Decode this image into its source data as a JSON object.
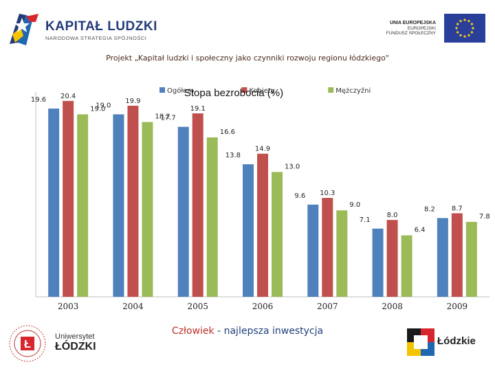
{
  "header": {
    "brand_title": "KAPITAŁ LUDZKI",
    "brand_subtitle": "NARODOWA STRATEGIA SPÓJNOŚCI",
    "eu_line1": "UNIA EUROPEJSKA",
    "eu_line2": "EUROPEJSKI",
    "eu_line3": "FUNDUSZ SPOŁECZNY"
  },
  "project_title": "Projekt „Kapitał ludzki i społeczny jako czynniki rozwoju regionu łódzkiego\"",
  "chart_data": {
    "type": "bar",
    "title": "Stopa bezrobocia (%)",
    "categories": [
      "2003",
      "2004",
      "2005",
      "2006",
      "2007",
      "2008",
      "2009"
    ],
    "series": [
      {
        "name": "Ogółem",
        "color": "#4f81bd",
        "values": [
          19.6,
          19.0,
          17.7,
          13.8,
          9.6,
          7.1,
          8.2
        ]
      },
      {
        "name": "Kobiety",
        "color": "#c0504d",
        "values": [
          20.4,
          19.9,
          19.1,
          14.9,
          10.3,
          8.0,
          8.7
        ]
      },
      {
        "name": "Mężczyźni",
        "color": "#9bbb59",
        "values": [
          19.0,
          18.2,
          16.6,
          13.0,
          9.0,
          6.4,
          7.8
        ]
      }
    ],
    "ylim": [
      0,
      21
    ],
    "legend": "top",
    "grid": false
  },
  "footer": {
    "slogan_part1": "Człowiek",
    "slogan_sep": " - ",
    "slogan_part2": "najlepsza inwestycja",
    "university_line1": "Uniwersytet",
    "university_line2": "ŁÓDZKI",
    "region_name": "Łódzkie"
  }
}
